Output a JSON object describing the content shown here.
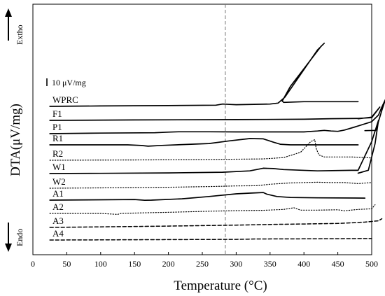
{
  "chart_data": {
    "type": "line",
    "title": "",
    "xlabel": "Temperature (°C)",
    "ylabel": "DTA(μV/mg)",
    "xlim": [
      0,
      500
    ],
    "xticks": [
      0,
      50,
      100,
      150,
      200,
      250,
      300,
      350,
      400,
      450,
      500
    ],
    "grid": false,
    "reference_line": {
      "x": 284,
      "style": "dashed"
    },
    "annotations": {
      "exo": "Extho",
      "endo": "Endo",
      "scale": "10 μV/mg"
    },
    "legend": "inline-left",
    "series": [
      {
        "name": "WPRC",
        "style": "solid",
        "points": [
          [
            25,
            0
          ],
          [
            100,
            0.6
          ],
          [
            200,
            1.2
          ],
          [
            270,
            1.8
          ],
          [
            280,
            3.5
          ],
          [
            290,
            3
          ],
          [
            300,
            2.5
          ],
          [
            350,
            3.5
          ],
          [
            362,
            5
          ],
          [
            372,
            14
          ],
          [
            420,
            85
          ],
          [
            430,
            95
          ],
          [
            425,
            90
          ],
          [
            380,
            30
          ],
          [
            368,
            8
          ],
          [
            370,
            6
          ],
          [
            400,
            7
          ],
          [
            480,
            7
          ]
        ]
      },
      {
        "name": "F1",
        "style": "solid",
        "points": [
          [
            25,
            0
          ],
          [
            150,
            0.6
          ],
          [
            300,
            1.2
          ],
          [
            400,
            1.7
          ],
          [
            440,
            2.5
          ],
          [
            480,
            3
          ],
          [
            500,
            4
          ],
          [
            512,
            20
          ],
          [
            500,
            5
          ],
          [
            480,
            2.3
          ]
        ]
      },
      {
        "name": "P1",
        "style": "solid",
        "points": [
          [
            25,
            0
          ],
          [
            100,
            0.8
          ],
          [
            180,
            1.4
          ],
          [
            200,
            2.3
          ],
          [
            215,
            2.8
          ],
          [
            260,
            2.8
          ],
          [
            300,
            2.6
          ],
          [
            400,
            2.6
          ],
          [
            420,
            4
          ],
          [
            430,
            5
          ],
          [
            440,
            4
          ],
          [
            450,
            3.5
          ],
          [
            460,
            5.5
          ],
          [
            475,
            10
          ],
          [
            500,
            18
          ],
          [
            510,
            28
          ],
          [
            515,
            40
          ],
          [
            520,
            51
          ],
          [
            515,
            35
          ],
          [
            506,
            5
          ],
          [
            490,
            4.5
          ]
        ]
      },
      {
        "name": "R1",
        "style": "solid",
        "points": [
          [
            25,
            0
          ],
          [
            100,
            0
          ],
          [
            140,
            0
          ],
          [
            160,
            -1
          ],
          [
            170,
            -2
          ],
          [
            190,
            -0.8
          ],
          [
            260,
            2
          ],
          [
            290,
            6
          ],
          [
            320,
            9.5
          ],
          [
            340,
            9
          ],
          [
            355,
            4
          ],
          [
            365,
            1
          ],
          [
            380,
            0
          ],
          [
            480,
            0
          ]
        ]
      },
      {
        "name": "R2",
        "style": "dotted",
        "points": [
          [
            25,
            0
          ],
          [
            150,
            0.4
          ],
          [
            250,
            1
          ],
          [
            300,
            1.6
          ],
          [
            340,
            2
          ],
          [
            370,
            4
          ],
          [
            395,
            12
          ],
          [
            410,
            28
          ],
          [
            416,
            31
          ],
          [
            418,
            18
          ],
          [
            422,
            8
          ],
          [
            430,
            5
          ],
          [
            470,
            5
          ],
          [
            500,
            3.5
          ]
        ]
      },
      {
        "name": "W1",
        "style": "solid",
        "points": [
          [
            25,
            0
          ],
          [
            100,
            0.3
          ],
          [
            200,
            1
          ],
          [
            280,
            2
          ],
          [
            320,
            4
          ],
          [
            340,
            8
          ],
          [
            355,
            7.5
          ],
          [
            370,
            6
          ],
          [
            420,
            4
          ],
          [
            470,
            4.8
          ],
          [
            480,
            4.8
          ],
          [
            500,
            48
          ],
          [
            510,
            80
          ],
          [
            505,
            45
          ],
          [
            495,
            5
          ],
          [
            480,
            0.5
          ]
        ]
      },
      {
        "name": "W2",
        "style": "dotted",
        "points": [
          [
            25,
            0
          ],
          [
            100,
            0.5
          ],
          [
            200,
            1.5
          ],
          [
            260,
            2.5
          ],
          [
            300,
            3.5
          ],
          [
            330,
            3.8
          ],
          [
            350,
            6
          ],
          [
            380,
            8
          ],
          [
            420,
            9
          ],
          [
            440,
            8.5
          ],
          [
            460,
            8.5
          ],
          [
            480,
            7
          ],
          [
            500,
            8.5
          ]
        ]
      },
      {
        "name": "A1",
        "style": "solid",
        "points": [
          [
            25,
            0
          ],
          [
            100,
            0.5
          ],
          [
            150,
            1
          ],
          [
            165,
            -0.2
          ],
          [
            175,
            0
          ],
          [
            220,
            2
          ],
          [
            260,
            5.5
          ],
          [
            300,
            9.5
          ],
          [
            320,
            10.5
          ],
          [
            340,
            11.5
          ],
          [
            345,
            9
          ],
          [
            360,
            5.5
          ],
          [
            380,
            4
          ],
          [
            420,
            3.5
          ],
          [
            490,
            3
          ]
        ]
      },
      {
        "name": "A2",
        "style": "dotted",
        "points": [
          [
            25,
            0
          ],
          [
            100,
            0
          ],
          [
            125,
            -1.5
          ],
          [
            130,
            0
          ],
          [
            165,
            1
          ],
          [
            200,
            1.7
          ],
          [
            250,
            3
          ],
          [
            300,
            4.2
          ],
          [
            340,
            4.6
          ],
          [
            370,
            6
          ],
          [
            385,
            8.5
          ],
          [
            395,
            5
          ],
          [
            420,
            5
          ],
          [
            450,
            5.5
          ],
          [
            460,
            4
          ],
          [
            480,
            6
          ],
          [
            500,
            7
          ],
          [
            505,
            13
          ]
        ]
      },
      {
        "name": "A3",
        "style": "dashed",
        "points": [
          [
            25,
            0
          ],
          [
            100,
            0.8
          ],
          [
            200,
            2
          ],
          [
            300,
            3.5
          ],
          [
            360,
            4.6
          ],
          [
            400,
            5.2
          ],
          [
            450,
            6
          ],
          [
            470,
            7
          ],
          [
            490,
            8
          ],
          [
            510,
            10
          ],
          [
            515,
            13
          ]
        ]
      },
      {
        "name": "A4",
        "style": "dashed",
        "points": [
          [
            25,
            0
          ],
          [
            100,
            0.2
          ],
          [
            200,
            0.6
          ],
          [
            300,
            1
          ],
          [
            330,
            1.6
          ],
          [
            400,
            1.8
          ],
          [
            470,
            2.1
          ],
          [
            500,
            2.3
          ]
        ]
      }
    ]
  }
}
